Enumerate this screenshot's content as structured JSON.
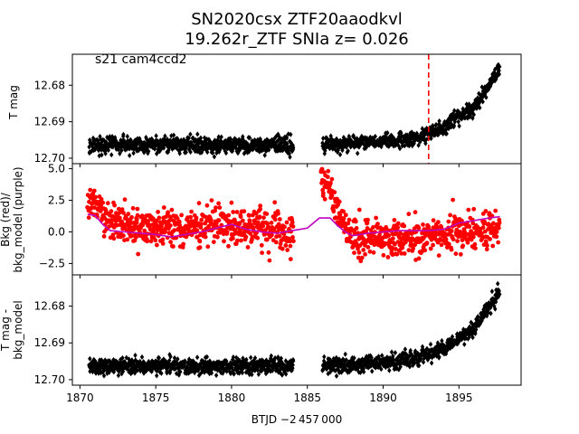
{
  "figure": {
    "title_line1": "SN2020csx  ZTF20aaodkvl",
    "title_line2": "19.262r_ZTF SNIa z= 0.026",
    "annotation": "s21 cam4ccd2",
    "xlabel": "BTJD −2 457 000"
  },
  "chart_data": [
    {
      "type": "scatter",
      "panel": "top",
      "ylabel": "T mag",
      "xlim": [
        1869.5,
        1899.1
      ],
      "ylim": [
        12.7015,
        12.6715
      ],
      "y_inverted": true,
      "xticks": [
        1870,
        1875,
        1880,
        1885,
        1890,
        1895
      ],
      "yticks": [
        12.68,
        12.69,
        12.7
      ],
      "ytick_labels": [
        "12.68",
        "12.69",
        "12.70"
      ],
      "vline": {
        "x": 1893.0,
        "color": "#ff0000",
        "style": "dashed"
      },
      "series": [
        {
          "color": "#000000",
          "marker": "diamond",
          "segments": [
            {
              "x_start": 1870.6,
              "x_end": 1884.1,
              "y_center": 12.6963,
              "y_scatter": 0.0011
            },
            {
              "x_start": 1886.0,
              "x_end": 1897.7,
              "trend": [
                [
                  1886.0,
                  12.6962
                ],
                [
                  1890.0,
                  12.6955
                ],
                [
                  1892.0,
                  12.6945
                ],
                [
                  1894.0,
                  12.6915
                ],
                [
                  1896.0,
                  12.686
                ],
                [
                  1897.7,
                  12.676
                ]
              ],
              "y_scatter": 0.001
            }
          ]
        }
      ]
    },
    {
      "type": "scatter",
      "panel": "middle",
      "ylabel_line1": "Bkg (red)/",
      "ylabel_line2": "bkg_model (purple)",
      "xlim": [
        1869.5,
        1899.1
      ],
      "ylim": [
        -3.4,
        5.4
      ],
      "xticks": [
        1870,
        1875,
        1880,
        1885,
        1890,
        1895
      ],
      "yticks": [
        -2.5,
        0.0,
        2.5,
        5.0
      ],
      "ytick_labels": [
        "−2.5",
        "0.0",
        "2.5",
        "5.0"
      ],
      "series": [
        {
          "color": "#ff0000",
          "marker": "circle",
          "segments": [
            {
              "trend": [
                [
                  1870.5,
                  2.8
                ],
                [
                  1871.2,
                  1.6
                ],
                [
                  1872.0,
                  0.9
                ],
                [
                  1874.0,
                  0.4
                ],
                [
                  1876.0,
                  0.3
                ],
                [
                  1878.0,
                  0.5
                ],
                [
                  1880.0,
                  0.5
                ],
                [
                  1882.0,
                  0.2
                ],
                [
                  1884.1,
                  -0.3
                ]
              ],
              "y_scatter": 0.75
            },
            {
              "trend": [
                [
                  1885.9,
                  4.3
                ],
                [
                  1886.5,
                  3.3
                ],
                [
                  1887.2,
                  1.0
                ],
                [
                  1888.0,
                  -0.4
                ],
                [
                  1890.0,
                  -0.5
                ],
                [
                  1892.0,
                  -0.5
                ],
                [
                  1894.0,
                  -0.3
                ],
                [
                  1896.0,
                  -0.1
                ],
                [
                  1897.7,
                  0.1
                ]
              ],
              "y_scatter": 0.75
            }
          ]
        },
        {
          "color": "#bf00bf",
          "marker": "line",
          "points": [
            [
              1870.5,
              1.4
            ],
            [
              1871.0,
              1.3
            ],
            [
              1871.5,
              0.6
            ],
            [
              1872.0,
              0.1
            ],
            [
              1873.0,
              0.0
            ],
            [
              1874.0,
              -0.1
            ],
            [
              1875.0,
              -0.2
            ],
            [
              1876.0,
              -0.4
            ],
            [
              1877.0,
              -0.2
            ],
            [
              1878.0,
              0.0
            ],
            [
              1879.0,
              0.3
            ],
            [
              1880.0,
              0.6
            ],
            [
              1881.0,
              0.2
            ],
            [
              1882.0,
              0.0
            ],
            [
              1883.0,
              -0.1
            ],
            [
              1884.0,
              0.1
            ],
            [
              1885.0,
              0.3
            ],
            [
              1885.8,
              1.1
            ],
            [
              1886.5,
              1.1
            ],
            [
              1887.0,
              0.5
            ],
            [
              1887.5,
              0.0
            ],
            [
              1888.0,
              -0.3
            ],
            [
              1889.0,
              -0.1
            ],
            [
              1890.0,
              0.0
            ],
            [
              1891.0,
              0.1
            ],
            [
              1892.0,
              0.1
            ],
            [
              1893.0,
              0.1
            ],
            [
              1894.0,
              0.2
            ],
            [
              1895.0,
              0.7
            ],
            [
              1896.0,
              0.9
            ],
            [
              1897.0,
              1.1
            ],
            [
              1897.7,
              1.2
            ]
          ]
        }
      ]
    },
    {
      "type": "scatter",
      "panel": "bottom",
      "ylabel_line1": "T mag -",
      "ylabel_line2": "bkg_model",
      "xlim": [
        1869.5,
        1899.1
      ],
      "ylim": [
        12.7015,
        12.6715
      ],
      "y_inverted": true,
      "xticks": [
        1870,
        1875,
        1880,
        1885,
        1890,
        1895
      ],
      "xtick_labels": [
        "1870",
        "1875",
        "1880",
        "1885",
        "1890",
        "1895"
      ],
      "yticks": [
        12.68,
        12.69,
        12.7
      ],
      "ytick_labels": [
        "12.68",
        "12.69",
        "12.70"
      ],
      "series": [
        {
          "color": "#000000",
          "marker": "diamond",
          "segments": [
            {
              "x_start": 1870.6,
              "x_end": 1884.1,
              "y_center": 12.6963,
              "y_scatter": 0.0011
            },
            {
              "x_start": 1886.0,
              "x_end": 1897.7,
              "trend": [
                [
                  1886.0,
                  12.6962
                ],
                [
                  1890.0,
                  12.6955
                ],
                [
                  1892.0,
                  12.6945
                ],
                [
                  1894.0,
                  12.6915
                ],
                [
                  1896.0,
                  12.686
                ],
                [
                  1897.7,
                  12.676
                ]
              ],
              "y_scatter": 0.001
            }
          ]
        }
      ]
    }
  ]
}
